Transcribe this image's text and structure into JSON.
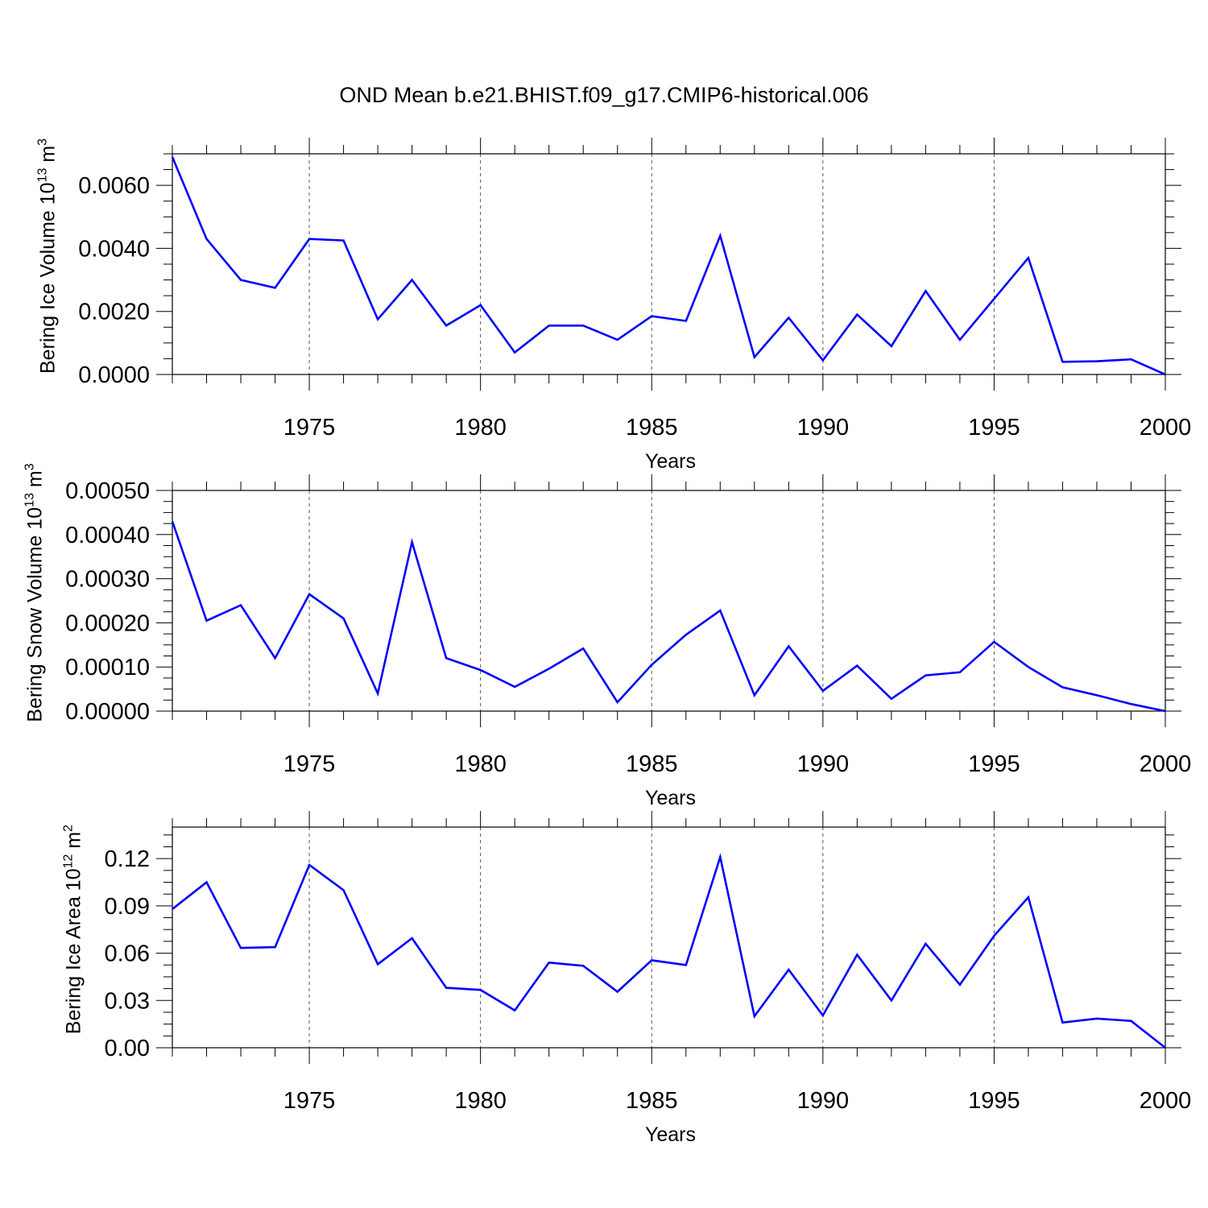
{
  "title": "OND Mean b.e21.BHIST.f09_g17.CMIP6-historical.006",
  "colors": {
    "series": "#0000ff",
    "axes": "#000000",
    "grid": "#555555"
  },
  "chart_data": [
    {
      "type": "line",
      "xlabel": "Years",
      "ylabel": {
        "text": "Bering Ice Volume 10",
        "exp": "13",
        "unit": " m",
        "unit_exp": "3"
      },
      "xlim": [
        1971,
        2000
      ],
      "ylim": [
        0,
        0.007
      ],
      "grid": "x-dashed",
      "x_ticks": [
        "1975",
        "1980",
        "1985",
        "1990",
        "1995",
        "2000"
      ],
      "y_ticks": [
        "0.0000",
        "0.0020",
        "0.0040",
        "0.0060"
      ],
      "x": [
        1971,
        1972,
        1973,
        1974,
        1975,
        1976,
        1977,
        1978,
        1979,
        1980,
        1981,
        1982,
        1983,
        1984,
        1985,
        1986,
        1987,
        1988,
        1989,
        1990,
        1991,
        1992,
        1993,
        1994,
        1995,
        1996,
        1997,
        1998,
        1999,
        2000
      ],
      "series": [
        {
          "values": [
            0.0069,
            0.0043,
            0.003,
            0.00275,
            0.0043,
            0.00425,
            0.00175,
            0.003,
            0.00155,
            0.0022,
            0.0007,
            0.00155,
            0.00155,
            0.0011,
            0.00185,
            0.0017,
            0.0044,
            0.00055,
            0.0018,
            0.00045,
            0.0019,
            0.0009,
            0.00265,
            0.0011,
            0.0024,
            0.0037,
            0.0004,
            0.00042,
            0.00048,
            0.0
          ]
        }
      ]
    },
    {
      "type": "line",
      "xlabel": "Years",
      "ylabel": {
        "text": "Bering Snow Volume 10",
        "exp": "13",
        "unit": " m",
        "unit_exp": "3"
      },
      "xlim": [
        1971,
        2000
      ],
      "ylim": [
        0,
        0.0005
      ],
      "grid": "x-dashed",
      "x_ticks": [
        "1975",
        "1980",
        "1985",
        "1990",
        "1995",
        "2000"
      ],
      "y_ticks": [
        "0.00000",
        "0.00010",
        "0.00020",
        "0.00030",
        "0.00040",
        "0.00050"
      ],
      "x": [
        1971,
        1972,
        1973,
        1974,
        1975,
        1976,
        1977,
        1978,
        1979,
        1980,
        1981,
        1982,
        1983,
        1984,
        1985,
        1986,
        1987,
        1988,
        1989,
        1990,
        1991,
        1992,
        1993,
        1994,
        1995,
        1996,
        1997,
        1998,
        1999,
        2000
      ],
      "series": [
        {
          "values": [
            0.00043,
            0.000205,
            0.00024,
            0.00012,
            0.000265,
            0.00021,
            4e-05,
            0.000383,
            0.00012,
            9.3e-05,
            5.5e-05,
            9.6e-05,
            0.000142,
            2e-05,
            0.000105,
            0.000173,
            0.000228,
            3.6e-05,
            0.000147,
            4.6e-05,
            0.000103,
            2.8e-05,
            8.1e-05,
            8.8e-05,
            0.000157,
            0.0001,
            5.4e-05,
            3.6e-05,
            1.6e-05,
            0.0
          ]
        }
      ]
    },
    {
      "type": "line",
      "xlabel": "Years",
      "ylabel": {
        "text": "Bering Ice Area 10",
        "exp": "12",
        "unit": " m",
        "unit_exp": "2"
      },
      "xlim": [
        1971,
        2000
      ],
      "ylim": [
        0,
        0.14
      ],
      "grid": "x-dashed",
      "x_ticks": [
        "1975",
        "1980",
        "1985",
        "1990",
        "1995",
        "2000"
      ],
      "y_ticks": [
        "0.00",
        "0.03",
        "0.06",
        "0.09",
        "0.12"
      ],
      "x": [
        1971,
        1972,
        1973,
        1974,
        1975,
        1976,
        1977,
        1978,
        1979,
        1980,
        1981,
        1982,
        1983,
        1984,
        1985,
        1986,
        1987,
        1988,
        1989,
        1990,
        1991,
        1992,
        1993,
        1994,
        1995,
        1996,
        1997,
        1998,
        1999,
        2000
      ],
      "series": [
        {
          "values": [
            0.088,
            0.105,
            0.0633,
            0.0638,
            0.116,
            0.1,
            0.053,
            0.0695,
            0.038,
            0.0367,
            0.0237,
            0.054,
            0.052,
            0.0355,
            0.0555,
            0.0525,
            0.121,
            0.02,
            0.0495,
            0.0205,
            0.059,
            0.03,
            0.066,
            0.04,
            0.071,
            0.0955,
            0.016,
            0.0185,
            0.017,
            0.0
          ]
        }
      ]
    }
  ]
}
